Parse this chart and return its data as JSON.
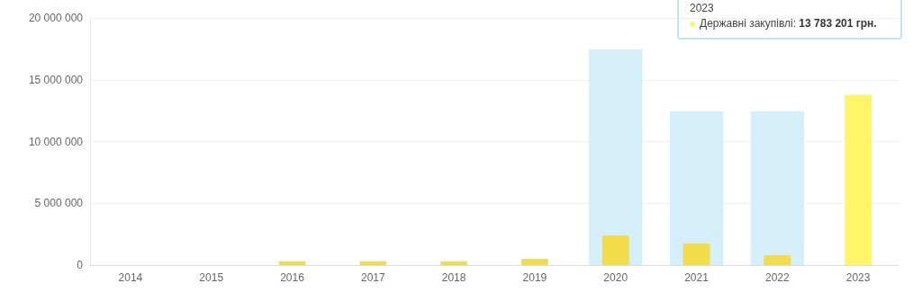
{
  "chart_data": {
    "type": "bar",
    "categories": [
      "2014",
      "2015",
      "2016",
      "2017",
      "2018",
      "2019",
      "2020",
      "2021",
      "2022",
      "2023"
    ],
    "series": [
      {
        "color": "#d4eefa",
        "values": [
          null,
          null,
          null,
          null,
          null,
          null,
          17450000,
          12450000,
          12450000,
          null
        ]
      },
      {
        "colors": [
          "#f3dc4a",
          "#f3dc4a",
          "#f3dc4a",
          "#f3dc4a",
          "#f3dc4a",
          "#f3dc4a",
          "#f3dc4a",
          "#f3dc4a",
          "#f3dc4a",
          "#fff566"
        ],
        "values": [
          null,
          null,
          300000,
          300000,
          300000,
          500000,
          2400000,
          1750000,
          800000,
          13783201
        ]
      }
    ],
    "ylim": [
      0,
      20000000
    ],
    "yticks": [
      0,
      5000000,
      10000000,
      15000000,
      20000000
    ],
    "grid": "y",
    "annotations": [
      "2023",
      "Державні закупівлі:",
      "13 783 201 грн."
    ]
  }
}
